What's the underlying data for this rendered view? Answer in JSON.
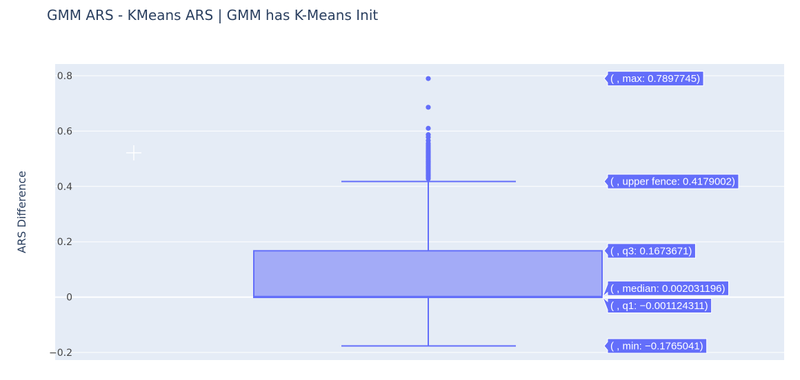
{
  "chart_data": {
    "type": "box",
    "title": "GMM ARS - KMeans ARS | GMM has K-Means Init",
    "xlabel": "",
    "ylabel": "ARS Difference",
    "ylim": [
      -0.225,
      0.845
    ],
    "yticks": [
      -0.2,
      0,
      0.2,
      0.4,
      0.6,
      0.8
    ],
    "ytick_labels": [
      "−0.2",
      "0",
      "0.2",
      "0.4",
      "0.6",
      "0.8"
    ],
    "grid": true,
    "box": {
      "min": -0.1765041,
      "q1": -0.001124311,
      "median": 0.002031196,
      "q3": 0.1673671,
      "upper_fence": 0.4179002,
      "max": 0.7897745
    },
    "outliers": [
      0.7897745,
      0.686,
      0.61,
      0.587,
      0.578,
      0.566,
      0.556,
      0.55,
      0.545,
      0.54,
      0.535,
      0.53,
      0.526,
      0.522,
      0.518,
      0.514,
      0.51,
      0.506,
      0.502,
      0.498,
      0.494,
      0.49,
      0.486,
      0.482,
      0.478,
      0.474,
      0.47,
      0.466,
      0.462,
      0.458,
      0.453,
      0.448,
      0.443,
      0.438,
      0.433,
      0.428
    ],
    "hover_labels": {
      "max": "( , max: 0.7897745)",
      "upper_fence": "( , upper fence: 0.4179002)",
      "q3": "( , q3: 0.1673671)",
      "median": "( , median: 0.002031196)",
      "q1": "( , q1: −0.001124311)",
      "min": "( , min: −0.1765041)"
    },
    "colors": {
      "line": "#636efa",
      "fill": "#a3abf7",
      "plot_bg": "#e5ecf6",
      "grid": "#ffffff",
      "title": "#2a3f5f"
    }
  }
}
